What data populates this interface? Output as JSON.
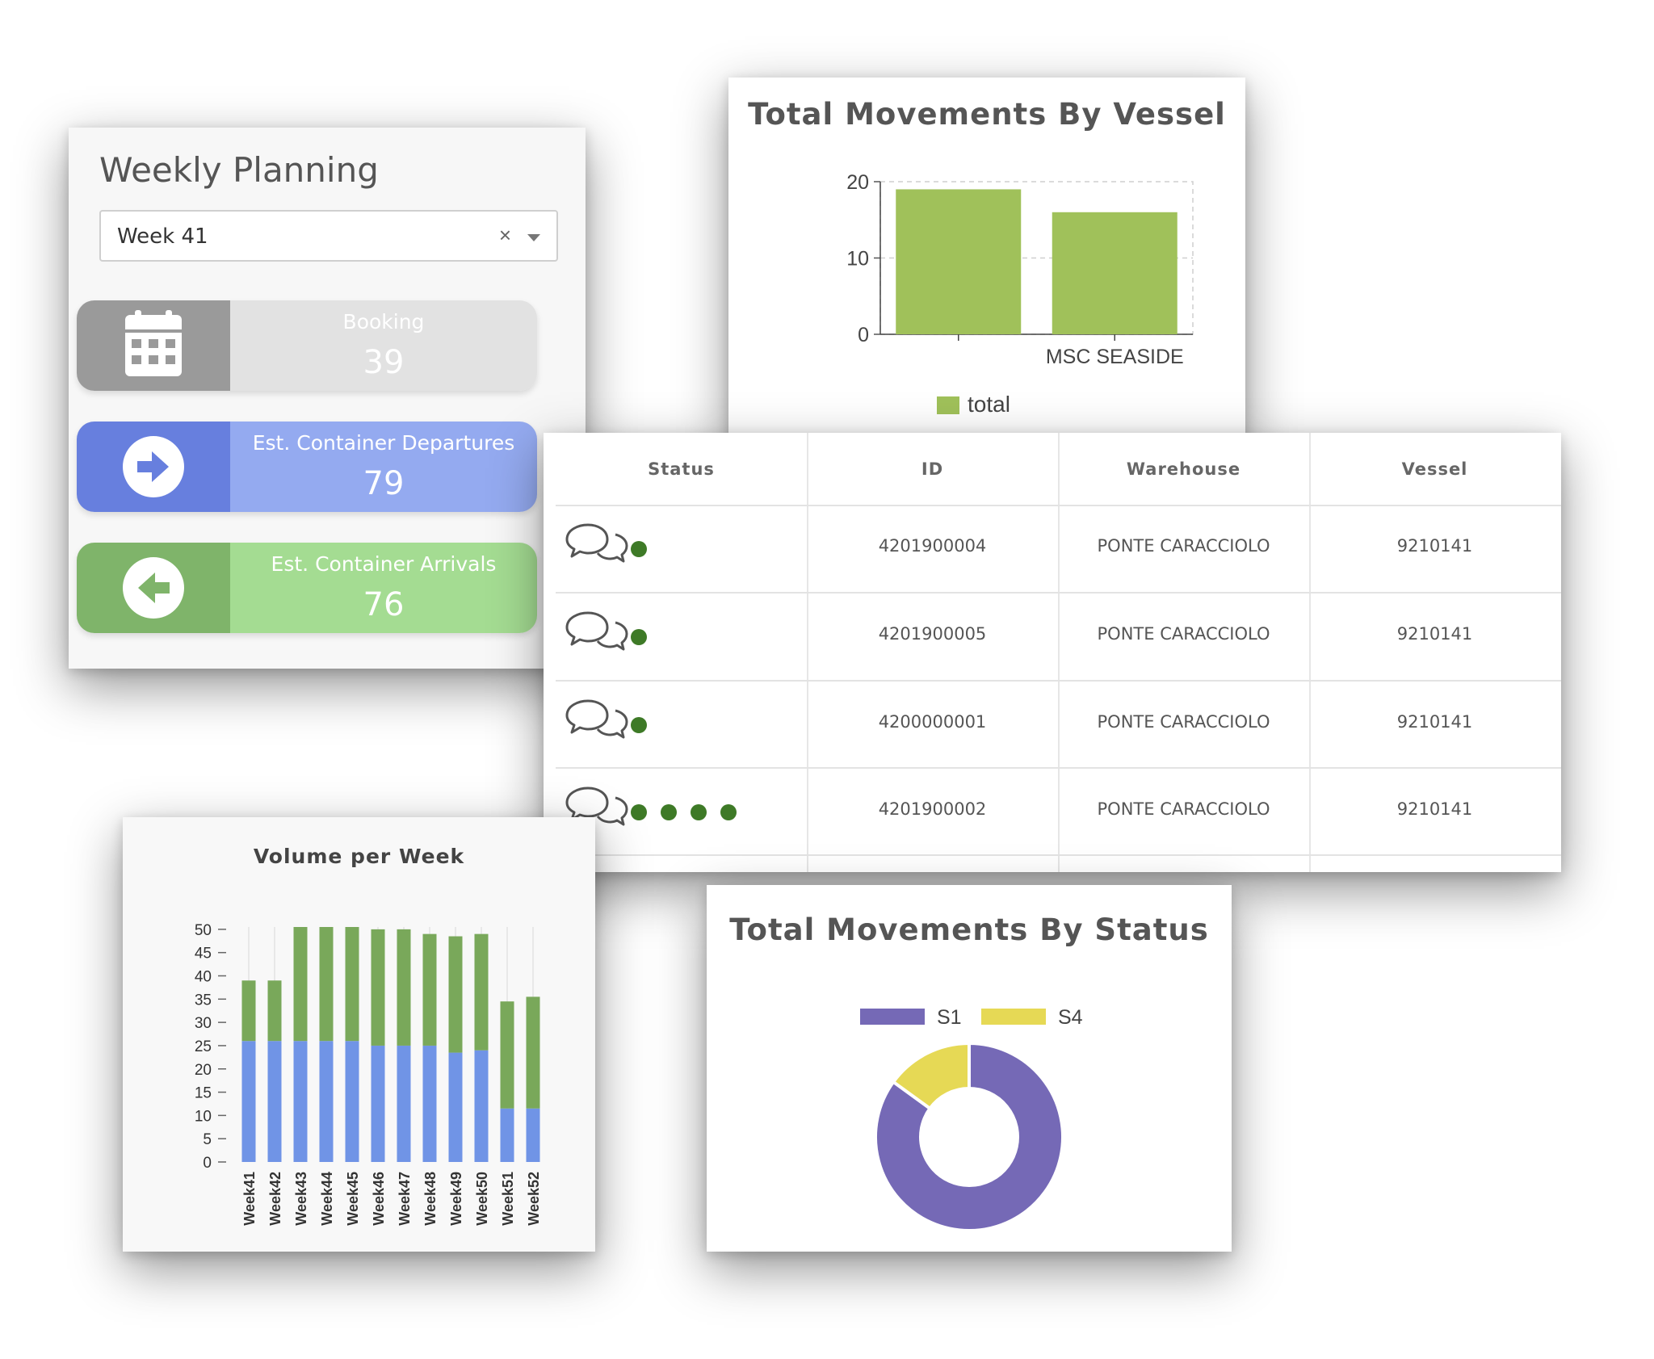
{
  "weekly_planning": {
    "title": "Weekly Planning",
    "select": {
      "value": "Week 41",
      "clear_glyph": "×"
    },
    "stats": [
      {
        "label": "Booking",
        "value": "39",
        "icon": "calendar-icon",
        "icon_bg": "#9a9a9a",
        "body_bg": "#e2e2e2"
      },
      {
        "label": "Est. Container Departures",
        "value": "79",
        "icon": "arrow-right-circle-icon",
        "icon_bg": "#677fde",
        "body_bg": "#94aaf0"
      },
      {
        "label": "Est. Container Arrivals",
        "value": "76",
        "icon": "arrow-left-circle-icon",
        "icon_bg": "#7fb46a",
        "body_bg": "#a4dc92"
      }
    ]
  },
  "vessel_chart": {
    "title": "Total Movements By Vessel",
    "legend_label": "total",
    "color": "#a0c15a"
  },
  "table": {
    "headers": [
      "Status",
      "ID",
      "Warehouse",
      "Vessel"
    ],
    "status_dot_color": "#3e7a27",
    "rows": [
      {
        "dots": 1,
        "id": "4201900004",
        "warehouse": "PONTE CARACCIOLO",
        "vessel": "9210141"
      },
      {
        "dots": 1,
        "id": "4201900005",
        "warehouse": "PONTE CARACCIOLO",
        "vessel": "9210141"
      },
      {
        "dots": 1,
        "id": "4200000001",
        "warehouse": "PONTE CARACCIOLO",
        "vessel": "9210141"
      },
      {
        "dots": 4,
        "id": "4201900002",
        "warehouse": "PONTE CARACCIOLO",
        "vessel": "9210141"
      }
    ]
  },
  "volume_chart": {
    "title": "Volume per Week",
    "colors": {
      "lower": "#7094e6",
      "upper": "#79a85a"
    }
  },
  "status_chart": {
    "title": "Total Movements By Status",
    "colors": {
      "S1": "#7569b6",
      "S4": "#e6d955"
    }
  },
  "chart_data": [
    {
      "type": "bar",
      "title": "Total Movements By Vessel",
      "categories": [
        "",
        "MSC SEASIDE"
      ],
      "series": [
        {
          "name": "total",
          "values": [
            19,
            16
          ]
        }
      ],
      "yticks": [
        0,
        10,
        20
      ],
      "ylim": [
        0,
        20
      ],
      "grid": true,
      "legend": "bottom"
    },
    {
      "type": "bar",
      "title": "Volume per Week",
      "stacked": true,
      "categories": [
        "Week41",
        "Week42",
        "Week43",
        "Week44",
        "Week45",
        "Week46",
        "Week47",
        "Week48",
        "Week49",
        "Week50",
        "Week51",
        "Week52"
      ],
      "series": [
        {
          "values": [
            26,
            26,
            26,
            26,
            26,
            25,
            25,
            25,
            23.5,
            24,
            11.5,
            11.5
          ]
        },
        {
          "values": [
            13,
            13,
            24.5,
            24.5,
            24.5,
            25,
            25,
            24,
            25,
            25,
            23,
            24
          ]
        }
      ],
      "yticks": [
        0,
        5,
        10,
        15,
        20,
        25,
        30,
        35,
        40,
        45,
        50
      ],
      "ylim": [
        0,
        50.5
      ],
      "grid": true,
      "legend": "none"
    },
    {
      "type": "pie",
      "title": "Total Movements By Status",
      "donut": true,
      "categories": [
        "S1",
        "S4"
      ],
      "values": [
        85,
        15
      ],
      "legend": "top"
    }
  ]
}
